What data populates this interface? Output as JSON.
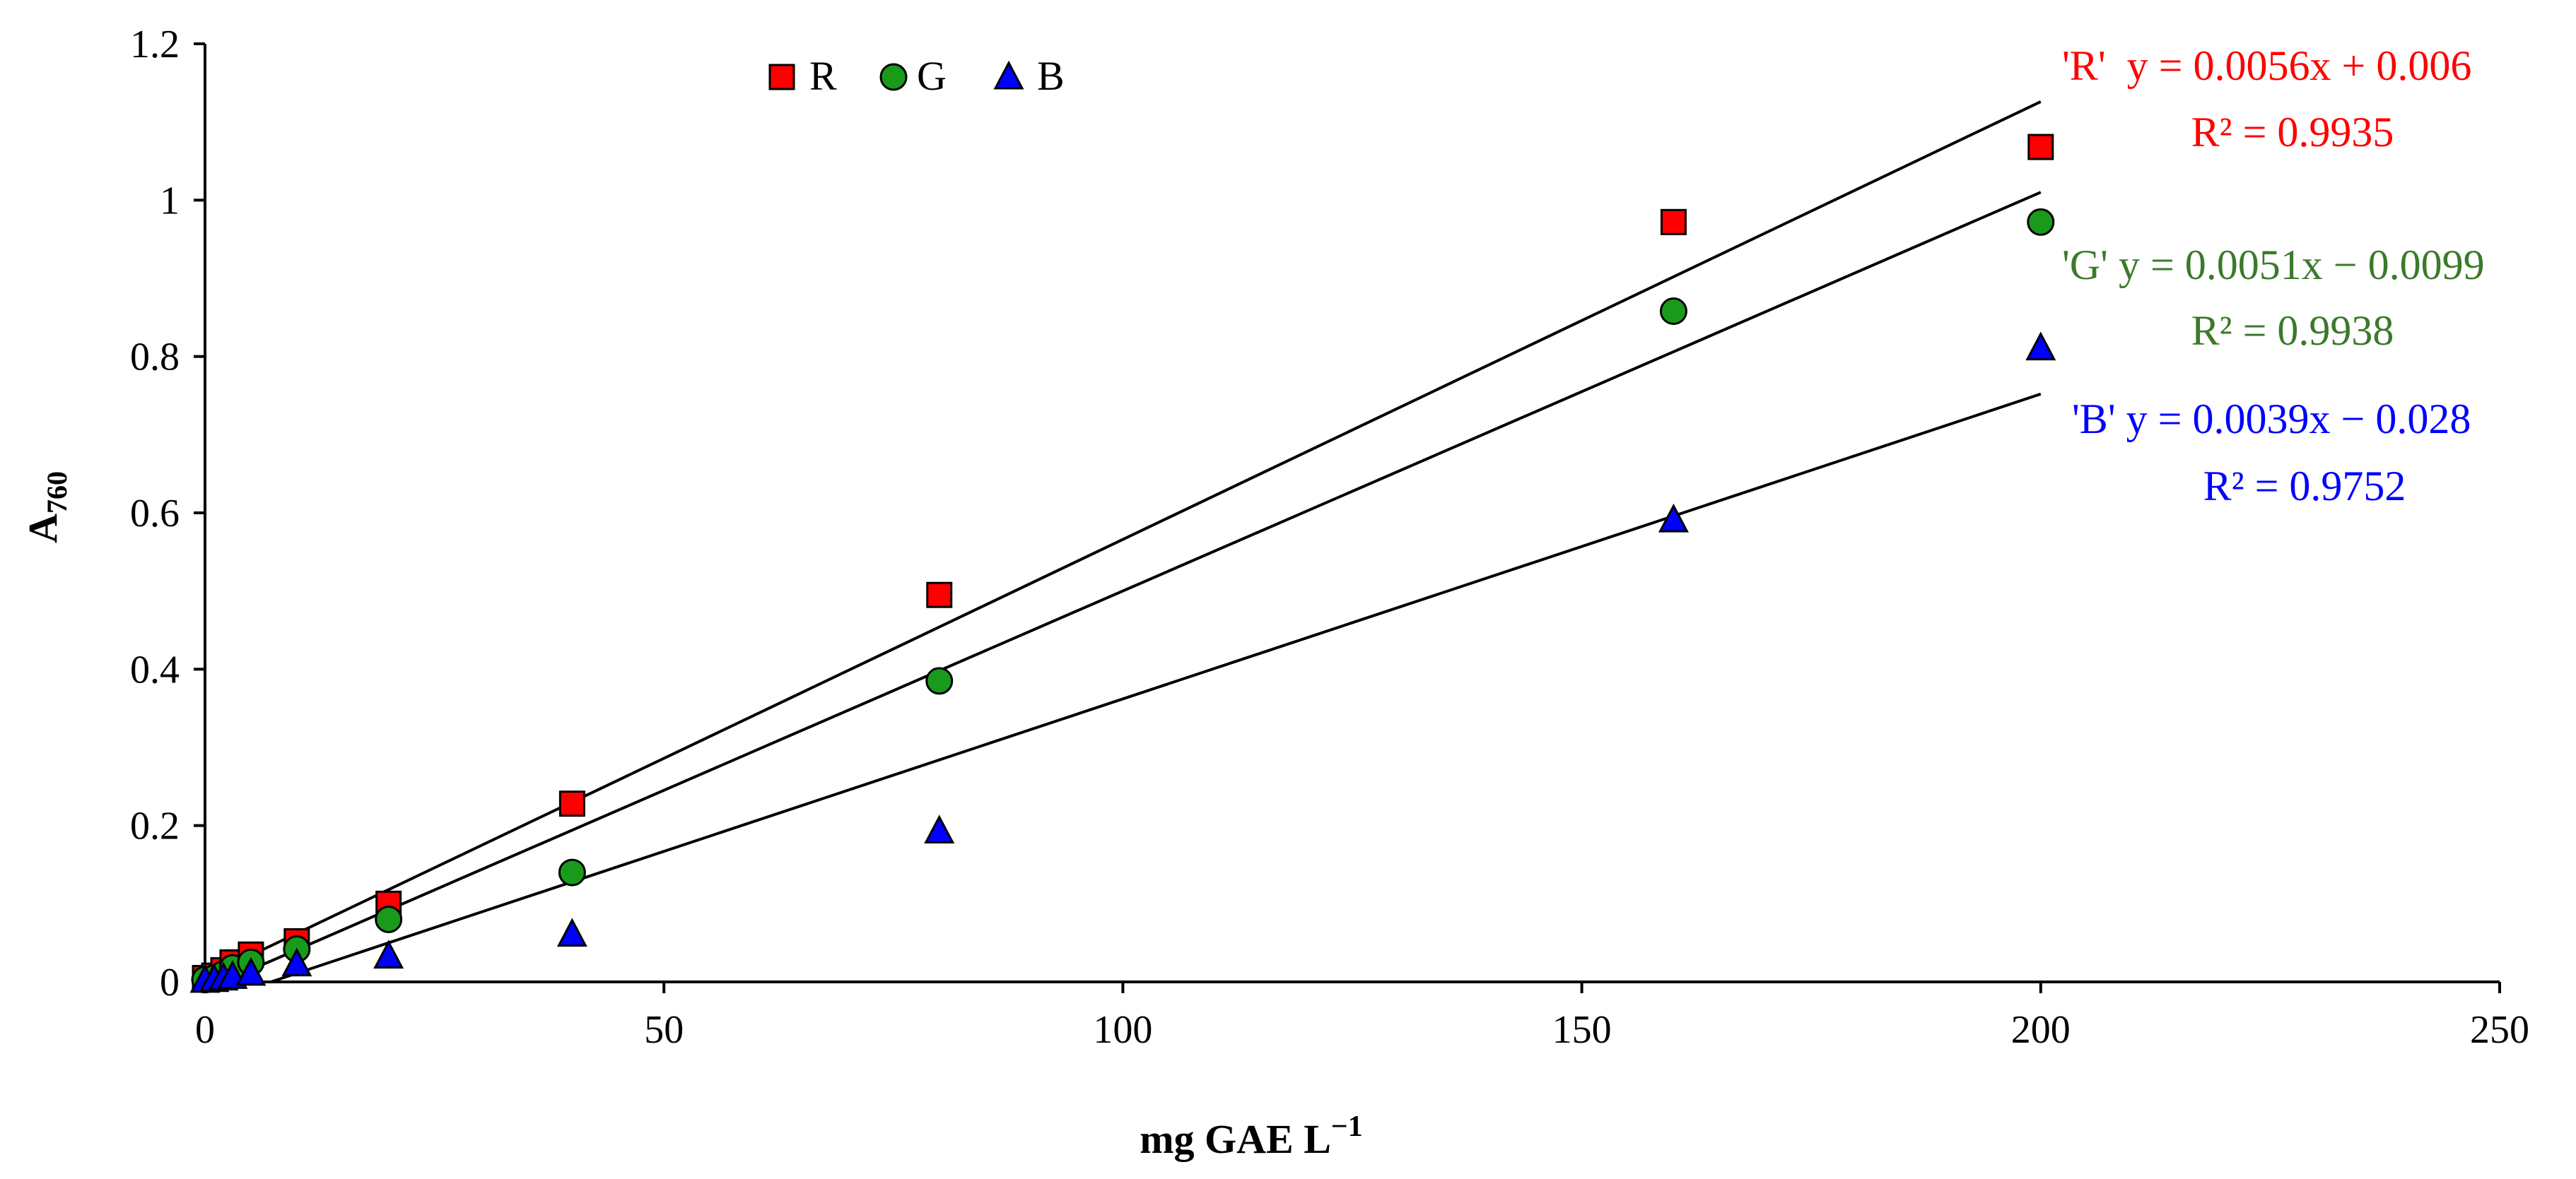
{
  "chart_data": {
    "type": "scatter",
    "title": "",
    "xlabel": "mg GAE L",
    "xlabel_sup": "−1",
    "ylabel": "A",
    "ylabel_sub": "760",
    "xlim": [
      0,
      250
    ],
    "ylim": [
      0,
      1.2
    ],
    "x_ticks": [
      0,
      50,
      100,
      150,
      200,
      250
    ],
    "y_ticks": [
      0,
      0.2,
      0.4,
      0.6,
      0.8,
      1,
      1.2
    ],
    "x_tick_labels": [
      "0",
      "50",
      "100",
      "150",
      "200",
      "250"
    ],
    "y_tick_labels": [
      "0",
      "0.2",
      "0.4",
      "0.6",
      "0.8",
      "1",
      "1.2"
    ],
    "grid": false,
    "legend_position": "top-left",
    "x": [
      0,
      1,
      2,
      3,
      5,
      10,
      20,
      40,
      80,
      160,
      200
    ],
    "series": [
      {
        "name": "R",
        "marker": "square",
        "color": "#ff0000",
        "label_color": "#ff0000",
        "values": [
          0.005,
          0.008,
          0.015,
          0.025,
          0.035,
          0.052,
          0.1,
          0.228,
          0.495,
          0.972,
          1.068
        ],
        "trend": {
          "slope": 0.0056,
          "intercept": 0.006,
          "x_range": [
            0,
            200
          ]
        },
        "equation": "'R'  y = 0.0056x + 0.006",
        "r2": "R² = 0.9935"
      },
      {
        "name": "G",
        "marker": "circle",
        "color": "#1a9a1a",
        "label_color": "#3a7a2a",
        "values": [
          0.003,
          0.005,
          0.01,
          0.018,
          0.025,
          0.042,
          0.08,
          0.14,
          0.385,
          0.858,
          0.972
        ],
        "trend": {
          "slope": 0.0051,
          "intercept": -0.0099,
          "x_range": [
            0,
            200
          ]
        },
        "equation": "'G' y = 0.0051x − 0.0099",
        "r2": "R² = 0.9938"
      },
      {
        "name": "B",
        "marker": "triangle",
        "color": "#0000ff",
        "label_color": "#0000ff",
        "values": [
          0.001,
          0.002,
          0.004,
          0.006,
          0.01,
          0.022,
          0.032,
          0.06,
          0.192,
          0.59,
          0.81
        ],
        "trend": {
          "slope": 0.0039,
          "intercept": -0.028,
          "x_range": [
            0,
            200
          ]
        },
        "equation": "'B' y = 0.0039x − 0.028",
        "r2": "R² = 0.9752"
      }
    ]
  }
}
